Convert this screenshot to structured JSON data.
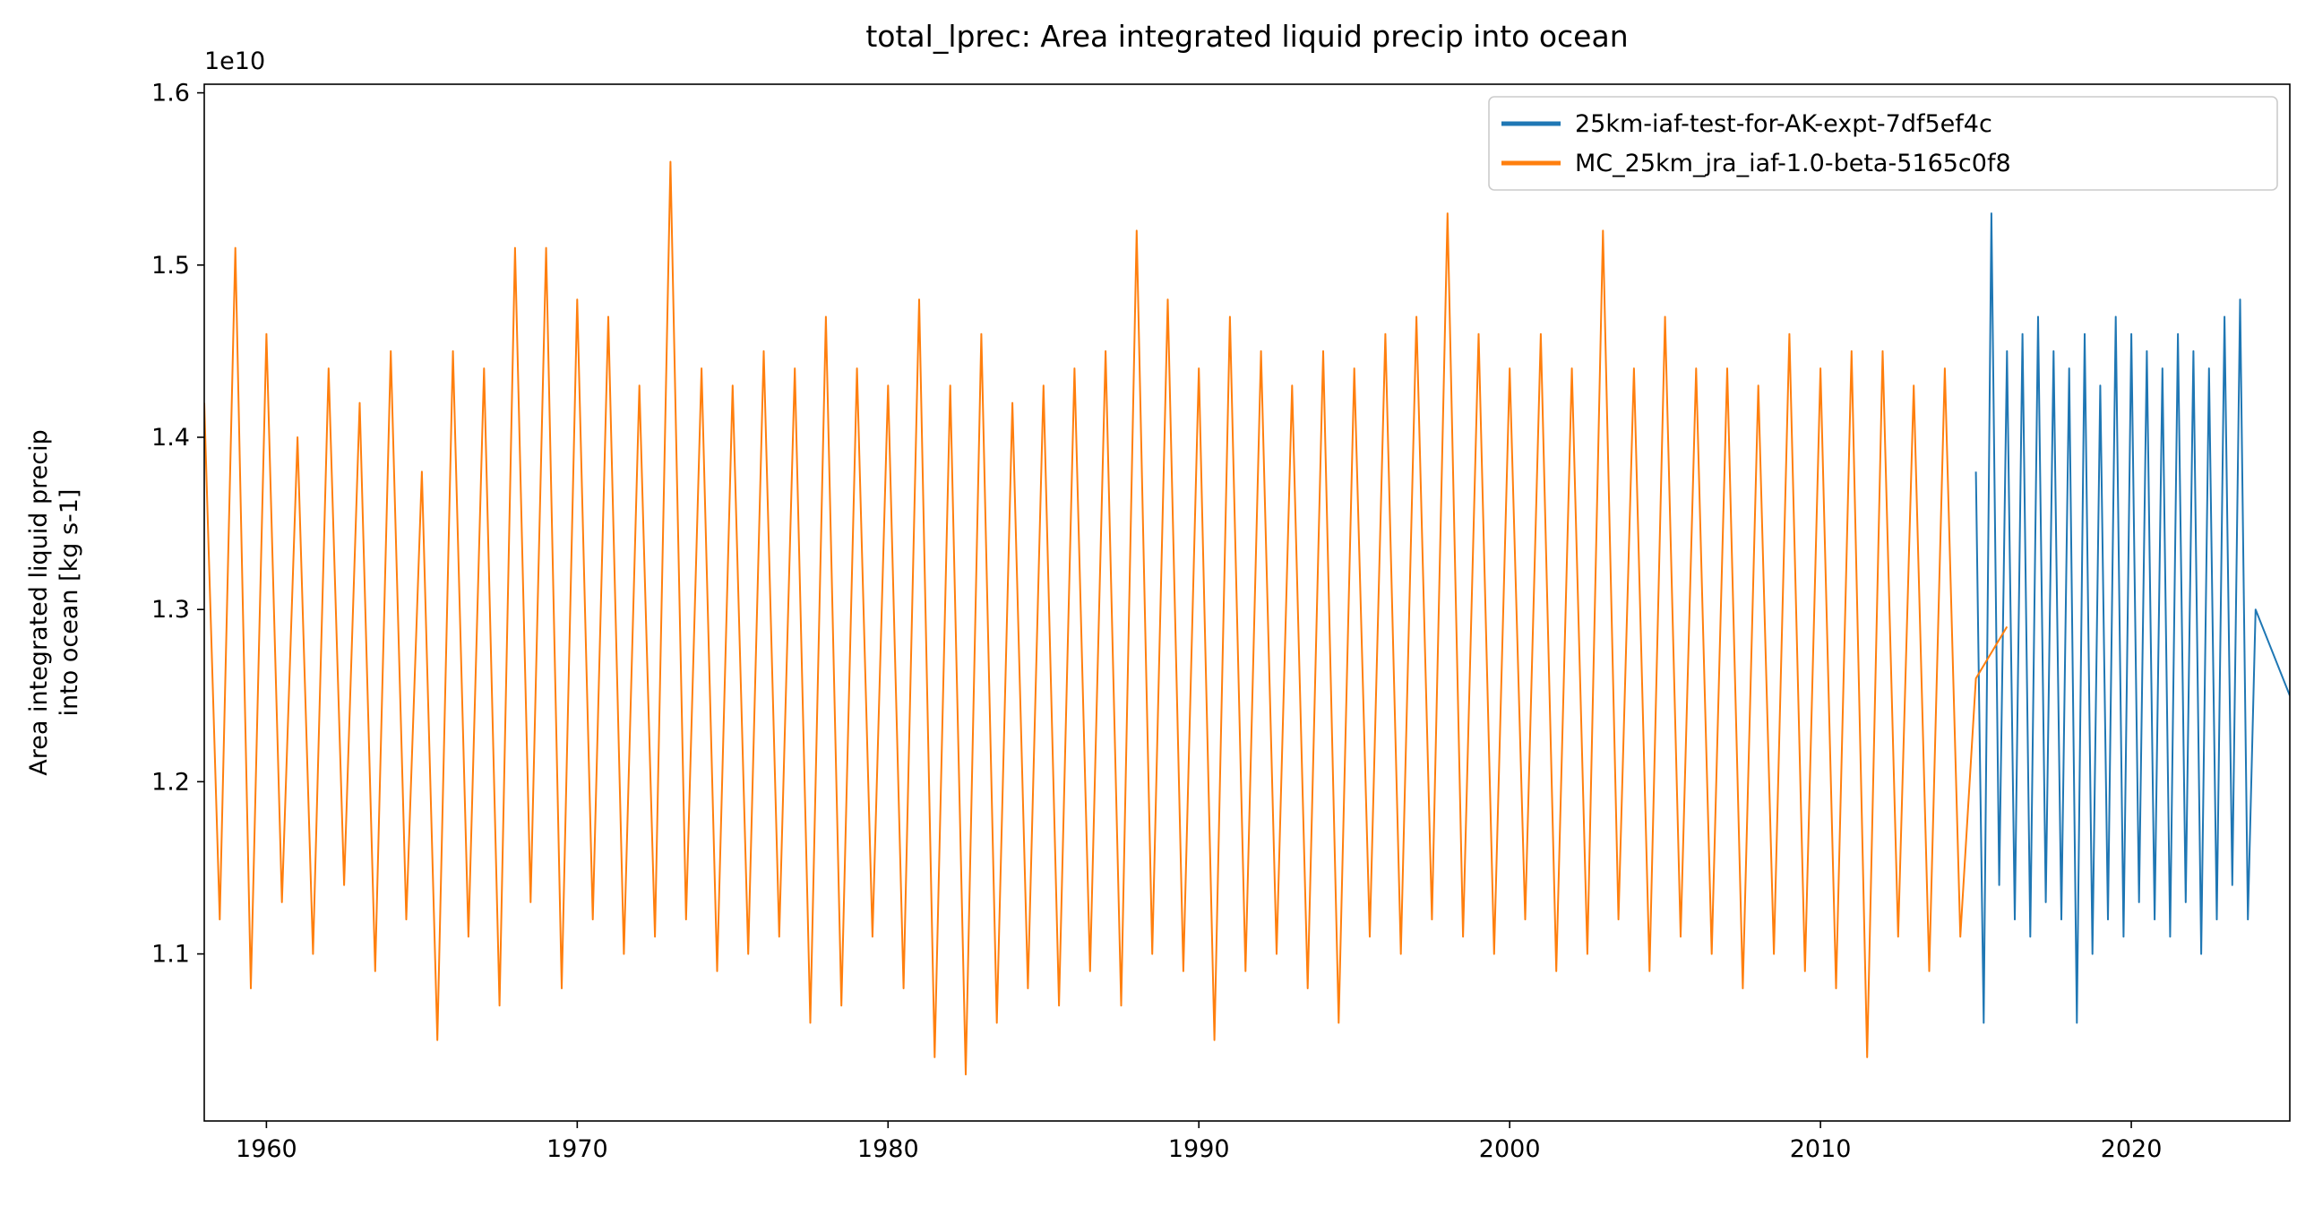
{
  "chart_data": {
    "type": "line",
    "title": "total_lprec: Area integrated liquid precip into ocean",
    "ylabel": [
      "Area integrated liquid precip",
      "into ocean [kg s-1]"
    ],
    "y_offset_label": "1e10",
    "xlim": [
      1958,
      2025.1
    ],
    "xticks": [
      1960,
      1970,
      1980,
      1990,
      2000,
      2010,
      2020
    ],
    "ylim": [
      1.003,
      1.605
    ],
    "yticks": [
      1.1,
      1.2,
      1.3,
      1.4,
      1.5,
      1.6
    ],
    "grid": false,
    "legend": "upper right",
    "series": [
      {
        "name": "25km-iaf-test-for-AK-expt-7df5ef4c",
        "color": "#1f77b4",
        "x": [
          2015,
          2015.25,
          2015.5,
          2015.75,
          2016,
          2016.25,
          2016.5,
          2016.75,
          2017,
          2017.25,
          2017.5,
          2017.75,
          2018,
          2018.25,
          2018.5,
          2018.75,
          2019,
          2019.25,
          2019.5,
          2019.75,
          2020,
          2020.25,
          2020.5,
          2020.75,
          2021,
          2021.25,
          2021.5,
          2021.75,
          2022,
          2022.25,
          2022.5,
          2022.75,
          2023,
          2023.25,
          2023.5,
          2023.75,
          2024,
          2025.1
        ],
        "values": [
          1.38,
          1.06,
          1.53,
          1.14,
          1.45,
          1.12,
          1.46,
          1.11,
          1.47,
          1.13,
          1.45,
          1.12,
          1.44,
          1.06,
          1.46,
          1.1,
          1.43,
          1.12,
          1.47,
          1.11,
          1.46,
          1.13,
          1.45,
          1.12,
          1.44,
          1.11,
          1.46,
          1.13,
          1.45,
          1.1,
          1.44,
          1.12,
          1.47,
          1.14,
          1.48,
          1.12,
          1.3,
          1.25
        ]
      },
      {
        "name": "MC_25km_jra_iaf-1.0-beta-5165c0f8",
        "color": "#ff7f0e",
        "x": [
          1958,
          1958.5,
          1959,
          1959.5,
          1960,
          1960.5,
          1961,
          1961.5,
          1962,
          1962.5,
          1963,
          1963.5,
          1964,
          1964.5,
          1965,
          1965.5,
          1966,
          1966.5,
          1967,
          1967.5,
          1968,
          1968.5,
          1969,
          1969.5,
          1970,
          1970.5,
          1971,
          1971.5,
          1972,
          1972.5,
          1973,
          1973.5,
          1974,
          1974.5,
          1975,
          1975.5,
          1976,
          1976.5,
          1977,
          1977.5,
          1978,
          1978.5,
          1979,
          1979.5,
          1980,
          1980.5,
          1981,
          1981.5,
          1982,
          1982.5,
          1983,
          1983.5,
          1984,
          1984.5,
          1985,
          1985.5,
          1986,
          1986.5,
          1987,
          1987.5,
          1988,
          1988.5,
          1989,
          1989.5,
          1990,
          1990.5,
          1991,
          1991.5,
          1992,
          1992.5,
          1993,
          1993.5,
          1994,
          1994.5,
          1995,
          1995.5,
          1996,
          1996.5,
          1997,
          1997.5,
          1998,
          1998.5,
          1999,
          1999.5,
          2000,
          2000.5,
          2001,
          2001.5,
          2002,
          2002.5,
          2003,
          2003.5,
          2004,
          2004.5,
          2005,
          2005.5,
          2006,
          2006.5,
          2007,
          2007.5,
          2008,
          2008.5,
          2009,
          2009.5,
          2010,
          2010.5,
          2011,
          2011.5,
          2012,
          2012.5,
          2013,
          2013.5,
          2014,
          2014.5,
          2015,
          2016
        ],
        "values": [
          1.42,
          1.12,
          1.51,
          1.08,
          1.46,
          1.13,
          1.4,
          1.1,
          1.44,
          1.14,
          1.42,
          1.09,
          1.45,
          1.12,
          1.38,
          1.05,
          1.45,
          1.11,
          1.44,
          1.07,
          1.51,
          1.13,
          1.51,
          1.08,
          1.48,
          1.12,
          1.47,
          1.1,
          1.43,
          1.11,
          1.56,
          1.12,
          1.44,
          1.09,
          1.43,
          1.1,
          1.45,
          1.11,
          1.44,
          1.06,
          1.47,
          1.07,
          1.44,
          1.11,
          1.43,
          1.08,
          1.48,
          1.04,
          1.43,
          1.03,
          1.46,
          1.06,
          1.42,
          1.08,
          1.43,
          1.07,
          1.44,
          1.09,
          1.45,
          1.07,
          1.52,
          1.1,
          1.48,
          1.09,
          1.44,
          1.05,
          1.47,
          1.09,
          1.45,
          1.1,
          1.43,
          1.08,
          1.45,
          1.06,
          1.44,
          1.11,
          1.46,
          1.1,
          1.47,
          1.12,
          1.53,
          1.11,
          1.46,
          1.1,
          1.44,
          1.12,
          1.46,
          1.09,
          1.44,
          1.1,
          1.52,
          1.12,
          1.44,
          1.09,
          1.47,
          1.11,
          1.44,
          1.1,
          1.44,
          1.08,
          1.43,
          1.1,
          1.46,
          1.09,
          1.44,
          1.08,
          1.45,
          1.04,
          1.45,
          1.11,
          1.43,
          1.09,
          1.44,
          1.11,
          1.26,
          1.29
        ]
      }
    ]
  }
}
